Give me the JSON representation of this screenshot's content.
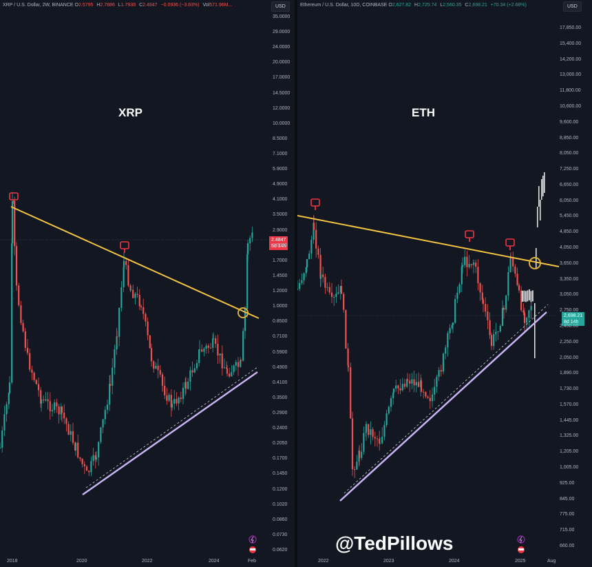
{
  "left": {
    "header": {
      "symbol": "XRP / U.S. Dollar, 2W, BINANCE",
      "o_label": "O",
      "o": "2.5795",
      "h_label": "H",
      "h": "2.7886",
      "l_label": "L",
      "l": "1.7938",
      "c_label": "C",
      "c": "2.4847",
      "chg": "−0.0936 (−3.63%)",
      "vol_label": "Vol",
      "vol": "571.96M..."
    },
    "currency": "USD",
    "title": "XRP",
    "price_tag": "2.4847",
    "price_tag_sub": "5d 14h",
    "y_ticks": [
      "35.0000",
      "29.0000",
      "24.0000",
      "20.0000",
      "17.0000",
      "14.5000",
      "12.0000",
      "10.0000",
      "8.5000",
      "7.1000",
      "5.9000",
      "4.9000",
      "4.1000",
      "3.5000",
      "2.9000",
      "2.4847",
      "2.0000",
      "1.7000",
      "1.4500",
      "1.2000",
      "1.0000",
      "0.8500",
      "0.7100",
      "0.5900",
      "0.4900",
      "0.4100",
      "0.3500",
      "0.2900",
      "0.2400",
      "0.2050",
      "0.1700",
      "0.1450",
      "0.1200",
      "0.1020",
      "0.0860",
      "0.0730",
      "0.0620"
    ],
    "x_ticks": [
      "2018",
      "2020",
      "2022",
      "2024",
      "Feb"
    ],
    "colors": {
      "up": "#26a69a",
      "down": "#ef5350",
      "resistance": "#f5c542",
      "support": "#c9b4f5",
      "tag": "#f23645"
    }
  },
  "right": {
    "header": {
      "symbol": "Ethereum / U.S. Dollar, 10D, COINBASE",
      "o_label": "O",
      "o": "2,627.82",
      "h_label": "H",
      "h": "2,725.74",
      "l_label": "L",
      "l": "2,560.35",
      "c_label": "C",
      "c": "2,698.21",
      "chg": "+70.34 (+2.68%)"
    },
    "currency": "USD",
    "title": "ETH",
    "price_tag": "2,698.21",
    "price_tag_sub": "8d 14h",
    "y_ticks": [
      "17,850.00",
      "15,400.00",
      "14,200.00",
      "13,000.00",
      "11,800.00",
      "10,600.00",
      "9,600.00",
      "8,850.00",
      "8,050.00",
      "7,250.00",
      "6,650.00",
      "6,050.00",
      "5,450.00",
      "4,850.00",
      "4,050.00",
      "3,650.00",
      "3,350.00",
      "3,050.00",
      "2,750.00",
      "2,450.00",
      "2,250.00",
      "2,050.00",
      "1,890.00",
      "1,730.00",
      "1,570.00",
      "1,445.00",
      "1,325.00",
      "1,205.00",
      "1,005.00",
      "925.00",
      "845.00",
      "775.00",
      "715.00",
      "660.00"
    ],
    "x_ticks": [
      "2022",
      "2023",
      "2024",
      "2025",
      "Aug"
    ],
    "colors": {
      "up": "#26a69a",
      "down": "#ef5350",
      "resistance": "#f5c542",
      "support": "#c9b4f5",
      "tag": "#26a69a",
      "projection": "#e0e0e0"
    }
  },
  "watermark": "@TedPillows"
}
